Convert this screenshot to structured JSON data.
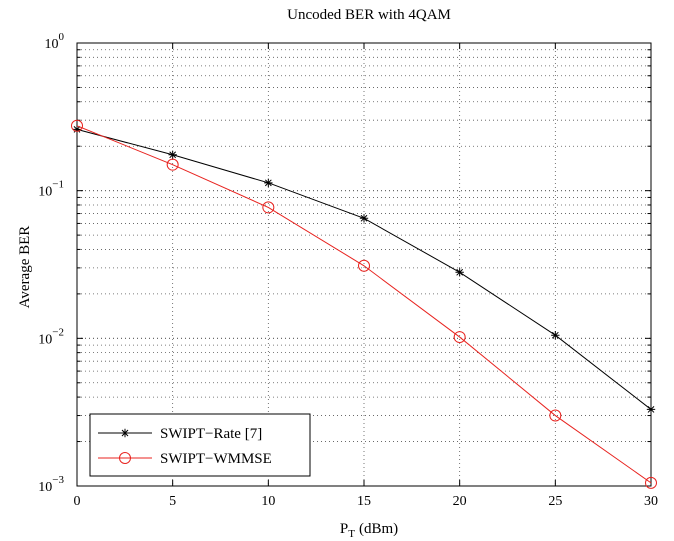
{
  "chart_data": {
    "type": "line",
    "title": "Uncoded BER with 4QAM",
    "xlabel": {
      "main": "P",
      "sub": "T",
      "unit": "(dBm)"
    },
    "ylabel": "Average BER",
    "yscale": "log",
    "xlim": [
      0,
      30
    ],
    "ylim": [
      0.001,
      1
    ],
    "x": [
      0,
      5,
      10,
      15,
      20,
      25,
      30
    ],
    "xticks": [
      "0",
      "5",
      "10",
      "15",
      "20",
      "25",
      "30"
    ],
    "yticks": [
      {
        "base": "10",
        "exp": "0"
      },
      {
        "base": "10",
        "exp": "−1"
      },
      {
        "base": "10",
        "exp": "−2"
      },
      {
        "base": "10",
        "exp": "−3"
      }
    ],
    "grid": true,
    "legend_position": "bottom-left",
    "series": [
      {
        "name": "SWIPT−Rate [7]",
        "color": "#000000",
        "marker": "asterisk",
        "values": [
          0.26,
          0.175,
          0.113,
          0.065,
          0.028,
          0.0105,
          0.0033
        ]
      },
      {
        "name": "SWIPT−WMMSE",
        "color": "#e8231f",
        "marker": "circle",
        "values": [
          0.275,
          0.15,
          0.077,
          0.031,
          0.0102,
          0.003,
          0.00105
        ]
      }
    ]
  }
}
